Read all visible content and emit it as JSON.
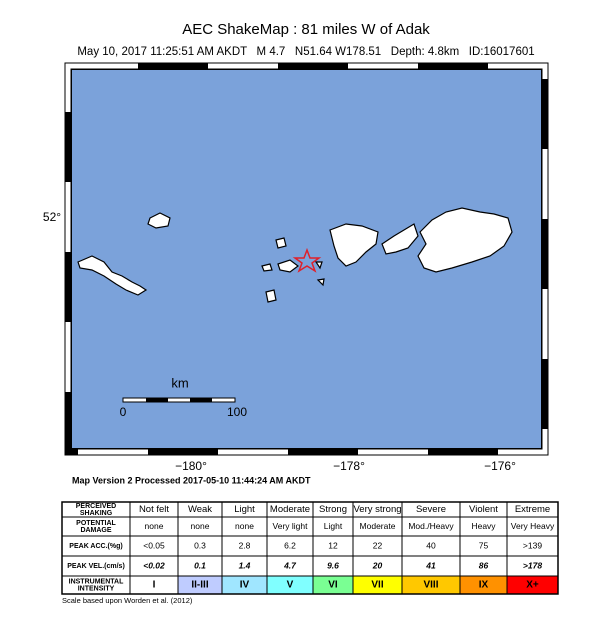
{
  "header": {
    "title": "AEC ShakeMap : 81 miles W of Adak",
    "subtitle": "May 10, 2017 11:25:51 AM AKDT   M 4.7   N51.64 W178.51   Depth: 4.8km   ID:16017601"
  },
  "map": {
    "lat_labels": [
      "52°"
    ],
    "lon_labels": [
      "−180°",
      "−178°",
      "−176°"
    ],
    "scale": {
      "unit": "km",
      "start": "0",
      "end": "100"
    }
  },
  "processed": "Map Version 2 Processed 2017-05-10 11:44:24 AM AKDT",
  "table": {
    "rows": [
      {
        "label": [
          "PERCEIVED",
          "SHAKING"
        ],
        "cells": [
          "Not felt",
          "Weak",
          "Light",
          "Moderate",
          "Strong",
          "Very strong",
          "Severe",
          "Violent",
          "Extreme"
        ]
      },
      {
        "label": [
          "POTENTIAL",
          "DAMAGE"
        ],
        "cells": [
          "none",
          "none",
          "none",
          "Very light",
          "Light",
          "Moderate",
          "Mod./Heavy",
          "Heavy",
          "Very Heavy"
        ]
      },
      {
        "label": [
          "PEAK ACC.(%g)"
        ],
        "cells": [
          "<0.05",
          "0.3",
          "2.8",
          "6.2",
          "12",
          "22",
          "40",
          "75",
          ">139"
        ]
      },
      {
        "label": [
          "PEAK VEL.(cm/s)"
        ],
        "cells": [
          "<0.02",
          "0.1",
          "1.4",
          "4.7",
          "9.6",
          "20",
          "41",
          "86",
          ">178"
        ]
      },
      {
        "label": [
          "INSTRUMENTAL",
          "INTENSITY"
        ],
        "cells": [
          "I",
          "II-III",
          "IV",
          "V",
          "VI",
          "VII",
          "VIII",
          "IX",
          "X+"
        ]
      }
    ]
  },
  "footer": "Scale based upon Worden et al. (2012)"
}
